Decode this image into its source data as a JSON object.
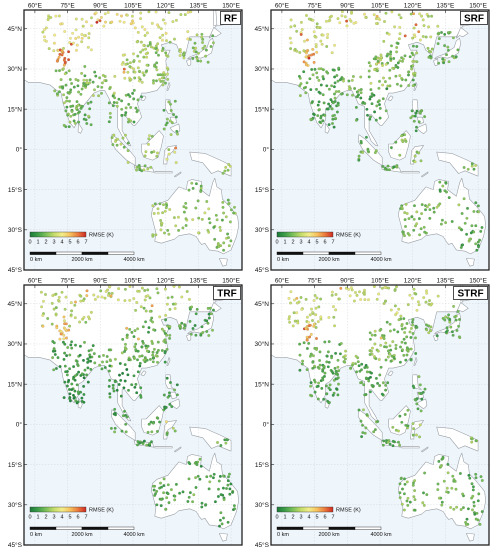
{
  "panels": [
    {
      "tag": "RF",
      "style": "hot"
    },
    {
      "tag": "SRF",
      "style": "mid"
    },
    {
      "tag": "TRF",
      "style": "green"
    },
    {
      "tag": "STRF",
      "style": "mid"
    }
  ],
  "lon_labels": [
    "60°E",
    "75°E",
    "90°E",
    "105°E",
    "120°E",
    "135°E",
    "150°E"
  ],
  "lat_labels": [
    "45°N",
    "30°N",
    "15°N",
    "0°",
    "15°S",
    "30°S",
    "45°S"
  ],
  "colorbar": {
    "title": "RMSE (K)",
    "ticks": [
      "0",
      "1",
      "2",
      "3",
      "4",
      "5",
      "6",
      "7"
    ],
    "colors": [
      "#1a7a3a",
      "#3e9e4a",
      "#7cc05a",
      "#c4dc6a",
      "#f2ec8a",
      "#f6c25e",
      "#ea7a3e",
      "#cc2a22"
    ]
  },
  "scalebar": {
    "labels": [
      "0 km",
      "2000 km",
      "4000 km"
    ]
  },
  "colors": {
    "ocean": "#eef5fb",
    "land": "#ffffff",
    "coast": "#9aa0a6",
    "grid": "#c7cdd4",
    "frame": "#222222"
  }
}
